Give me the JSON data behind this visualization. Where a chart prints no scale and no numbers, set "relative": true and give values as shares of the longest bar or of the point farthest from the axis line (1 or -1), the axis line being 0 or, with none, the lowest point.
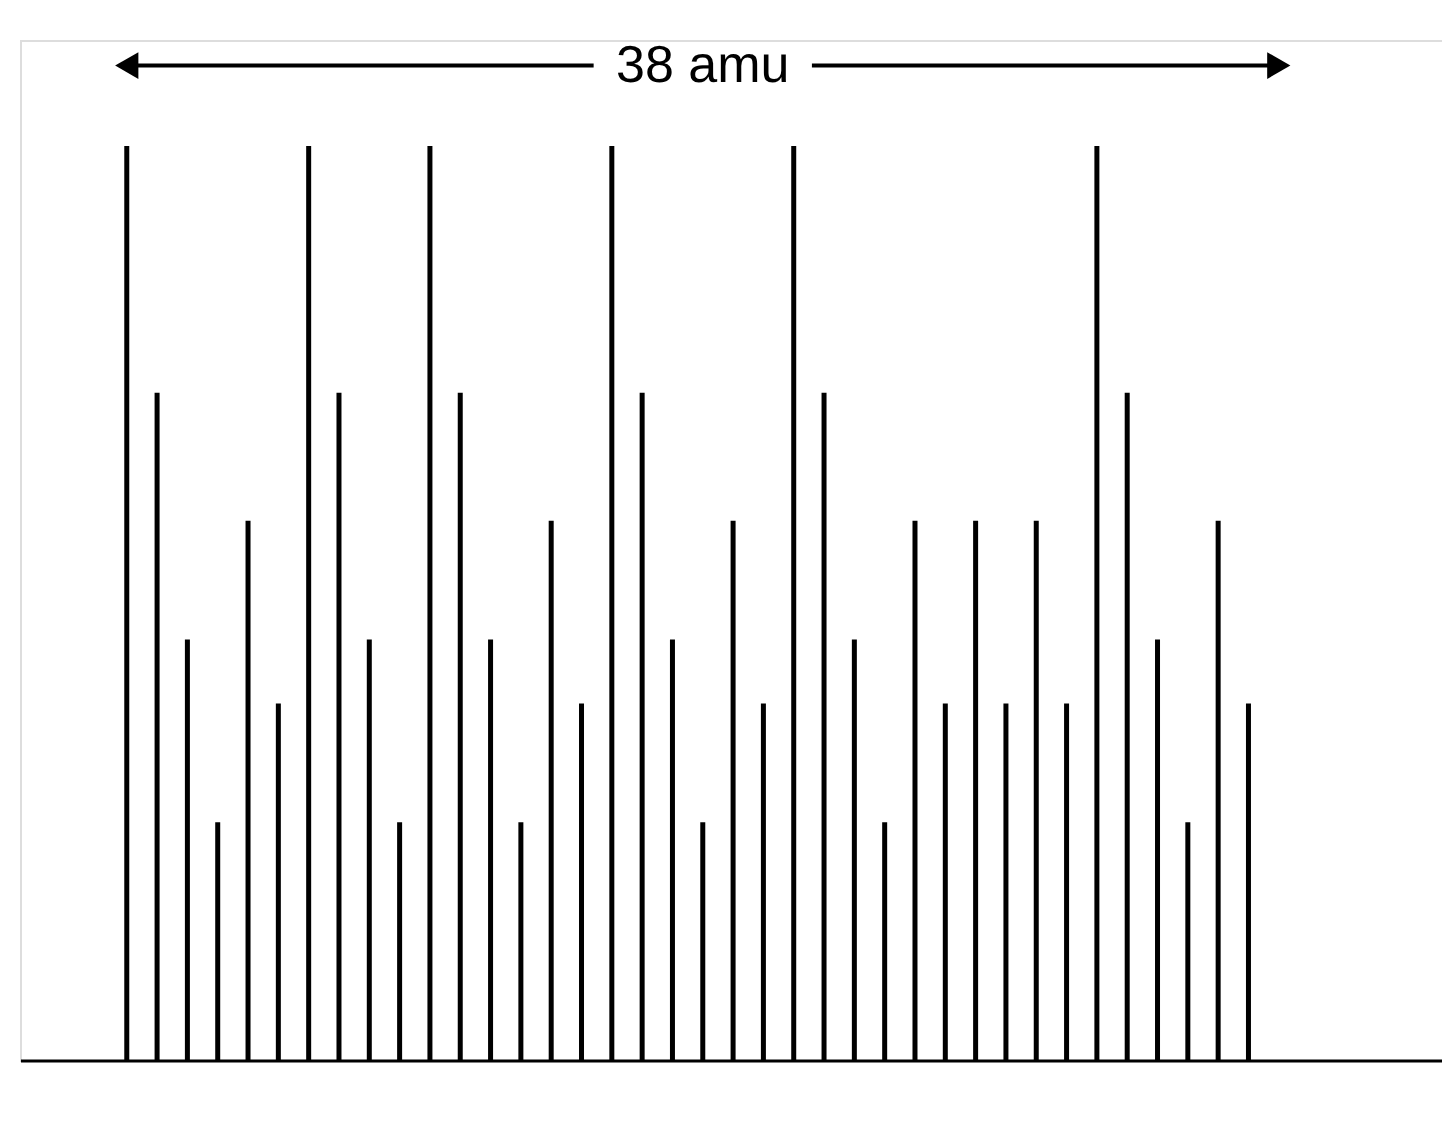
{
  "chart_data": {
    "type": "bar",
    "relative": true,
    "color": "#000000",
    "annotations": [
      "38 amu"
    ],
    "categories": [
      null,
      null,
      null,
      null,
      null,
      null,
      null,
      null,
      null,
      null,
      null,
      null,
      null,
      null,
      null,
      null,
      null,
      null,
      null,
      null,
      null,
      null,
      null,
      null,
      null,
      null,
      null,
      null,
      null,
      null,
      null,
      null,
      null,
      null,
      null,
      null,
      null,
      null
    ],
    "values": [
      1.0,
      0.73,
      0.46,
      0.26,
      0.59,
      0.39,
      1.0,
      0.73,
      0.46,
      0.26,
      1.0,
      0.73,
      0.46,
      0.26,
      0.59,
      0.39,
      1.0,
      0.73,
      0.46,
      0.26,
      0.59,
      0.39,
      1.0,
      0.73,
      0.46,
      0.26,
      0.59,
      0.39,
      0.59,
      0.39,
      0.59,
      0.39,
      1.0,
      0.73,
      0.46,
      0.26,
      0.59,
      0.39
    ]
  }
}
